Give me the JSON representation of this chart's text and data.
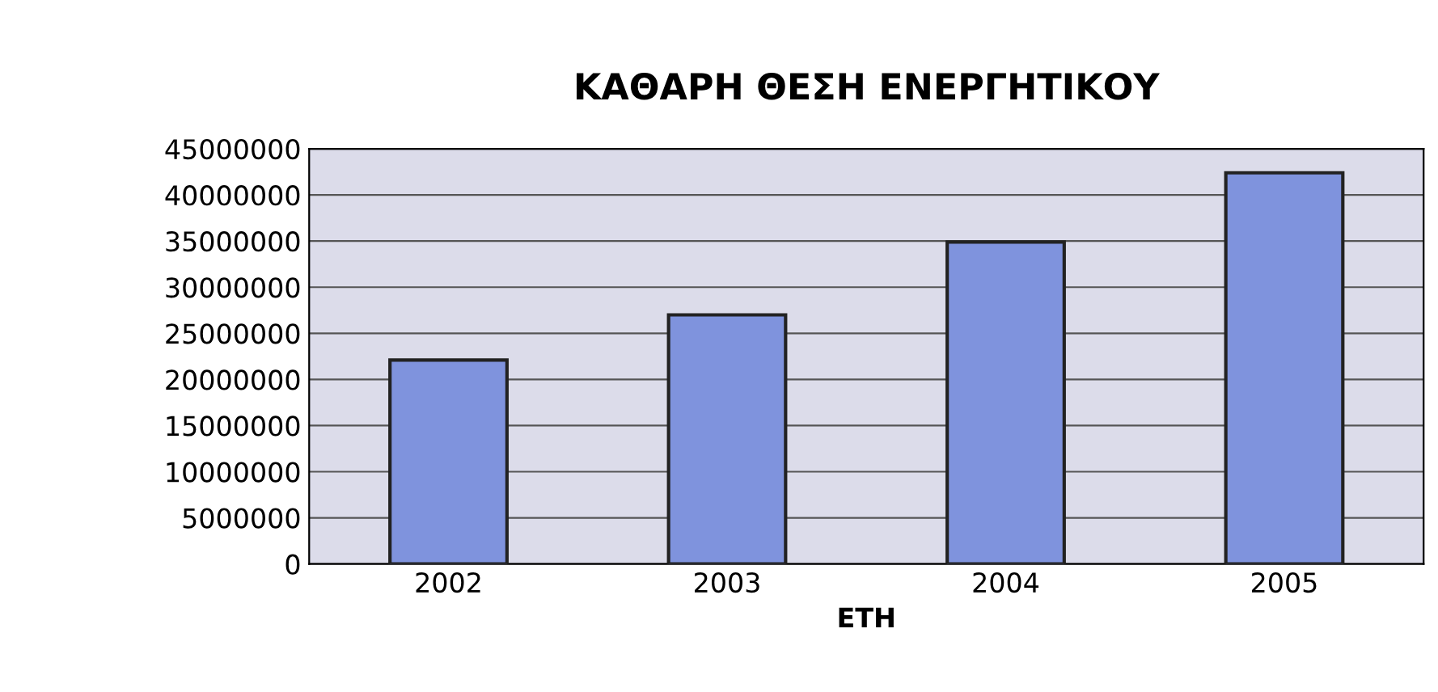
{
  "chart_data": {
    "type": "bar",
    "title": "ΚΑΘΑΡΗ ΘΕΣΗ ΕΝΕΡΓΗΤΙΚΟΥ",
    "xlabel": "ΕΤΗ",
    "categories": [
      "2002",
      "2003",
      "2004",
      "2005"
    ],
    "values": [
      22100000,
      27000000,
      34900000,
      42400000
    ],
    "color": "#7f93dd",
    "ylim": [
      0,
      45000000
    ],
    "yticks": [
      0,
      5000000,
      10000000,
      15000000,
      20000000,
      25000000,
      30000000,
      35000000,
      40000000,
      45000000
    ],
    "grid": "y",
    "legend": false
  }
}
